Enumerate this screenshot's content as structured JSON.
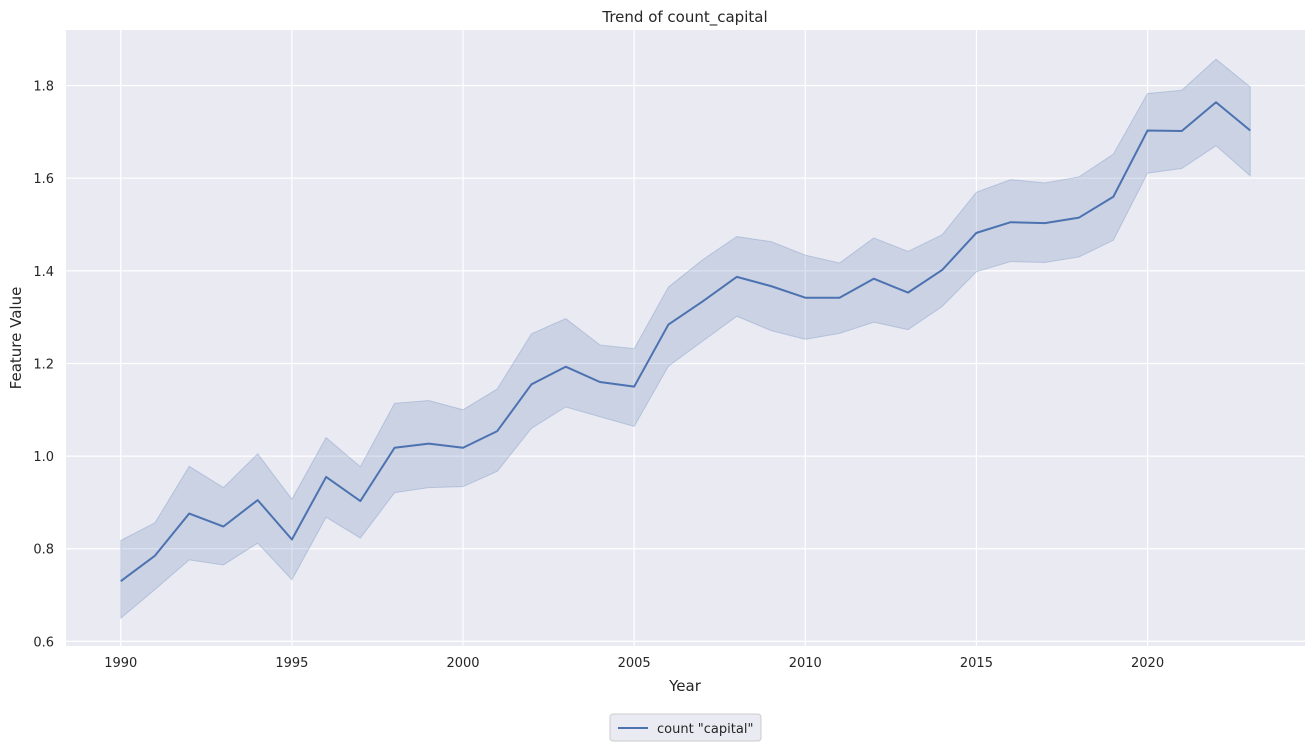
{
  "chart_data": {
    "type": "line",
    "title": "Trend of count_capital",
    "xlabel": "Year",
    "ylabel": "Feature Value",
    "xlim": [
      1988.4,
      2024.6
    ],
    "ylim": [
      0.59,
      1.92
    ],
    "xticks": [
      1990,
      1995,
      2000,
      2005,
      2010,
      2015,
      2020
    ],
    "yticks": [
      0.6,
      0.8,
      1.0,
      1.2,
      1.4,
      1.6,
      1.8
    ],
    "grid": true,
    "legend_position": "bottom-center",
    "colors": {
      "background": "#eaeaf2",
      "grid": "#ffffff",
      "line": "#4c72b0",
      "band": "#4c72b0"
    },
    "series": [
      {
        "name": "count \"capital\"",
        "x": [
          1990,
          1991,
          1992,
          1993,
          1994,
          1995,
          1996,
          1997,
          1998,
          1999,
          2000,
          2001,
          2002,
          2003,
          2004,
          2005,
          2006,
          2007,
          2008,
          2009,
          2010,
          2011,
          2012,
          2013,
          2014,
          2015,
          2016,
          2017,
          2018,
          2019,
          2020,
          2021,
          2022,
          2023
        ],
        "y": [
          0.73,
          0.785,
          0.876,
          0.848,
          0.905,
          0.82,
          0.955,
          0.903,
          1.018,
          1.027,
          1.018,
          1.054,
          1.155,
          1.193,
          1.16,
          1.15,
          1.284,
          1.334,
          1.387,
          1.367,
          1.342,
          1.342,
          1.383,
          1.353,
          1.402,
          1.482,
          1.505,
          1.503,
          1.515,
          1.56,
          1.703,
          1.702,
          1.764,
          1.703
        ],
        "ci_lower": [
          0.65,
          0.712,
          0.776,
          0.765,
          0.812,
          0.733,
          0.868,
          0.823,
          0.921,
          0.932,
          0.934,
          0.967,
          1.06,
          1.106,
          1.085,
          1.064,
          1.194,
          1.248,
          1.302,
          1.271,
          1.252,
          1.265,
          1.289,
          1.273,
          1.323,
          1.398,
          1.42,
          1.418,
          1.43,
          1.466,
          1.611,
          1.621,
          1.67,
          1.605
        ],
        "ci_upper": [
          0.818,
          0.856,
          0.978,
          0.932,
          1.005,
          0.907,
          1.04,
          0.977,
          1.114,
          1.12,
          1.1,
          1.145,
          1.264,
          1.297,
          1.24,
          1.232,
          1.365,
          1.424,
          1.474,
          1.463,
          1.434,
          1.417,
          1.471,
          1.442,
          1.478,
          1.57,
          1.597,
          1.59,
          1.603,
          1.652,
          1.783,
          1.79,
          1.857,
          1.797
        ]
      }
    ]
  }
}
